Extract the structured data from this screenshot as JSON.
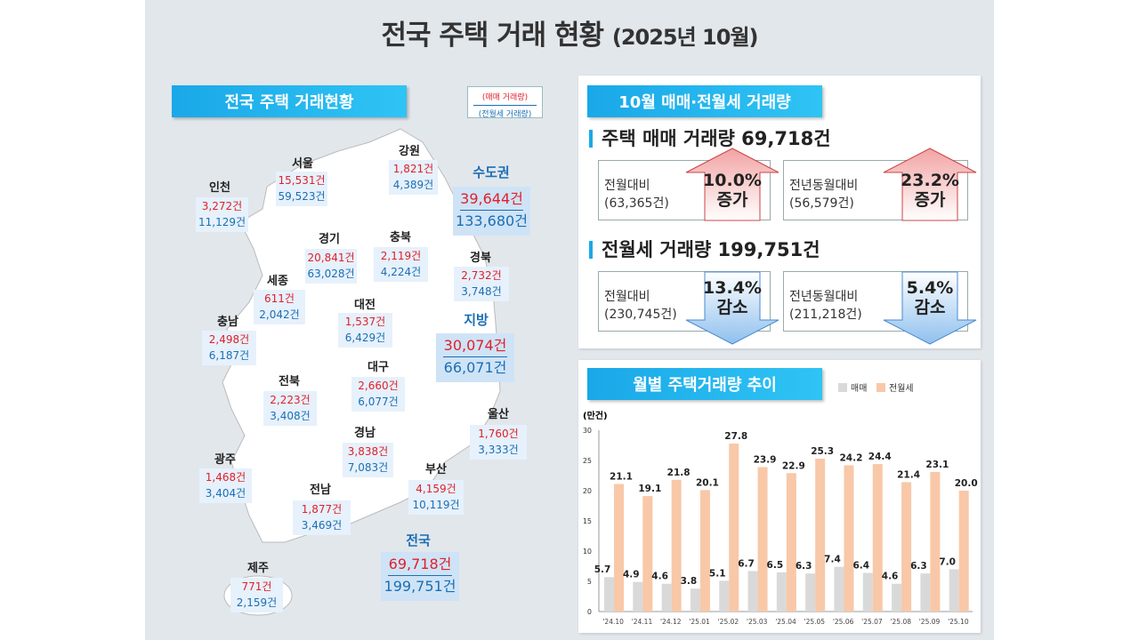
{
  "title": {
    "main": "전국 주택 거래 현황",
    "sub": "(2025년 10월)"
  },
  "left": {
    "header": "전국 주택 거래현황",
    "legend": {
      "sale": "(매매 거래량)",
      "rent": "(전월세 거래량)"
    }
  },
  "regions": [
    {
      "name": "강원",
      "sale": "1,821건",
      "rent": "4,389건"
    },
    {
      "name": "서울",
      "sale": "15,531건",
      "rent": "59,523건"
    },
    {
      "name": "인천",
      "sale": "3,272건",
      "rent": "11,129건"
    },
    {
      "name": "경기",
      "sale": "20,841건",
      "rent": "63,028건"
    },
    {
      "name": "충북",
      "sale": "2,119건",
      "rent": "4,224건"
    },
    {
      "name": "경북",
      "sale": "2,732건",
      "rent": "3,748건"
    },
    {
      "name": "세종",
      "sale": "611건",
      "rent": "2,042건"
    },
    {
      "name": "대전",
      "sale": "1,537건",
      "rent": "6,429건"
    },
    {
      "name": "충남",
      "sale": "2,498건",
      "rent": "6,187건"
    },
    {
      "name": "대구",
      "sale": "2,660건",
      "rent": "6,077건"
    },
    {
      "name": "전북",
      "sale": "2,223건",
      "rent": "3,408건"
    },
    {
      "name": "울산",
      "sale": "1,760건",
      "rent": "3,333건"
    },
    {
      "name": "경남",
      "sale": "3,838건",
      "rent": "7,083건"
    },
    {
      "name": "광주",
      "sale": "1,468건",
      "rent": "3,404건"
    },
    {
      "name": "부산",
      "sale": "4,159건",
      "rent": "10,119건"
    },
    {
      "name": "전남",
      "sale": "1,877건",
      "rent": "3,469건"
    },
    {
      "name": "제주",
      "sale": "771건",
      "rent": "2,159건"
    }
  ],
  "groups": [
    {
      "name": "수도권",
      "sale": "39,644건",
      "rent": "133,680건"
    },
    {
      "name": "지방",
      "sale": "30,074건",
      "rent": "66,071건"
    },
    {
      "name": "전국",
      "sale": "69,718건",
      "rent": "199,751건"
    }
  ],
  "summary": {
    "header": "10월 매매·전월세 거래량",
    "sale_title": "주택 매매 거래량 69,718건",
    "rent_title": "전월세 거래량 199,751건",
    "cards": [
      {
        "label": "전월대비",
        "base": "(63,365건)",
        "pct": "10.0%",
        "dir": "증가"
      },
      {
        "label": "전년동월대비",
        "base": "(56,579건)",
        "pct": "23.2%",
        "dir": "증가"
      },
      {
        "label": "전월대비",
        "base": "(230,745건)",
        "pct": "13.4%",
        "dir": "감소"
      },
      {
        "label": "전년동월대비",
        "base": "(211,218건)",
        "pct": "5.4%",
        "dir": "감소"
      }
    ],
    "colors": {
      "up": "#f2a3a3",
      "down": "#8fc0ee"
    }
  },
  "trend": {
    "header": "월별 주택거래량 추이"
  },
  "chart_data": {
    "type": "bar",
    "title": "월별 주택거래량 추이",
    "ylabel": "(만건)",
    "ylim": [
      0,
      30
    ],
    "yticks": [
      0,
      5,
      10,
      15,
      20,
      25,
      30
    ],
    "categories": [
      "'24.10",
      "'24.11",
      "'24.12",
      "'25.01",
      "'25.02",
      "'25.03",
      "'25.04",
      "'25.05",
      "'25.06",
      "'25.07",
      "'25.08",
      "'25.09",
      "'25.10"
    ],
    "series": [
      {
        "name": "매매",
        "color": "#d9d9d9",
        "values": [
          5.7,
          4.9,
          4.6,
          3.8,
          5.1,
          6.7,
          6.5,
          6.3,
          7.4,
          6.4,
          4.6,
          6.3,
          7.0
        ]
      },
      {
        "name": "전월세",
        "color": "#f8c8a8",
        "values": [
          21.1,
          19.1,
          21.8,
          20.1,
          27.8,
          23.9,
          22.9,
          25.3,
          24.2,
          24.4,
          21.4,
          23.1,
          20.0
        ]
      }
    ],
    "legend": "top-right"
  }
}
